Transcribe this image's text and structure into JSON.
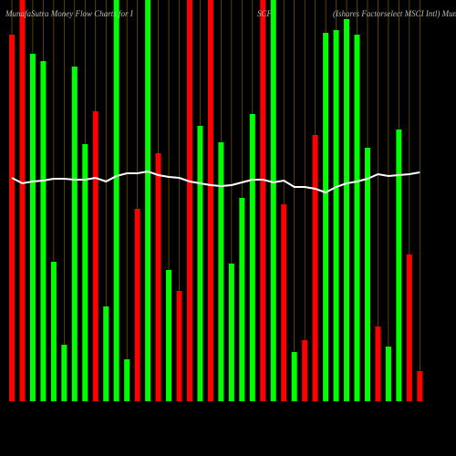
{
  "chart_data": {
    "type": "bar",
    "title": "MunafaSutra  Money Flow  Charts for I",
    "ticker": "SCF",
    "subtitle": "(Ishares Factorselect MSCI Intl) MunafaSutra.com",
    "ylim": [
      0,
      440
    ],
    "values": [
      402,
      440,
      381,
      373,
      153,
      62,
      367,
      282,
      318,
      104,
      440,
      46,
      211,
      440,
      272,
      144,
      121,
      440,
      302,
      440,
      284,
      151,
      223,
      315,
      440,
      440,
      216,
      54,
      67,
      292,
      404,
      407,
      419,
      402,
      278,
      82,
      60,
      298,
      161,
      33
    ],
    "colors": [
      "#ff0000",
      "#ff0000",
      "#00ff00",
      "#00ff00",
      "#00ff00",
      "#00ff00",
      "#00ff00",
      "#00ff00",
      "#ff0000",
      "#00ff00",
      "#00ff00",
      "#00ff00",
      "#ff0000",
      "#00ff00",
      "#ff0000",
      "#00ff00",
      "#ff0000",
      "#ff0000",
      "#00ff00",
      "#ff0000",
      "#00ff00",
      "#00ff00",
      "#00ff00",
      "#00ff00",
      "#ff0000",
      "#00ff00",
      "#ff0000",
      "#00ff00",
      "#ff0000",
      "#ff0000",
      "#00ff00",
      "#00ff00",
      "#00ff00",
      "#00ff00",
      "#00ff00",
      "#ff0000",
      "#00ff00",
      "#00ff00",
      "#ff0000",
      "#ff0000"
    ],
    "line": {
      "color": "#ffffff",
      "values": [
        245,
        239,
        241,
        242,
        244,
        244,
        243,
        243,
        245,
        241,
        247,
        250,
        250,
        252,
        248,
        246,
        245,
        241,
        239,
        237,
        236,
        237,
        240,
        243,
        243,
        240,
        242,
        235,
        235,
        233,
        229,
        235,
        239,
        241,
        244,
        249,
        247,
        248,
        249,
        251
      ]
    },
    "guide_color": "#b8860b"
  }
}
